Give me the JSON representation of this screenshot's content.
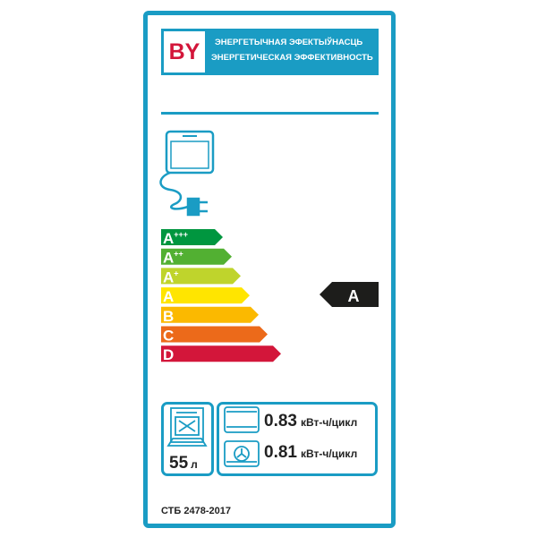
{
  "header": {
    "country_code": "BY",
    "line1": "ЭНЕРГЕТЫЧНАЯ  ЭФЕКТЫЎНАСЦЬ",
    "line2": "ЭНЕРГЕТИЧЕСКАЯ ЭФФЕКТИВНОСТЬ",
    "color": "#1a9cc4"
  },
  "scale": [
    {
      "letter": "A",
      "sup": "+++",
      "color": "#00963f"
    },
    {
      "letter": "A",
      "sup": "++",
      "color": "#52b032"
    },
    {
      "letter": "A",
      "sup": "+",
      "color": "#bfd42c"
    },
    {
      "letter": "A",
      "sup": "",
      "color": "#ffe500"
    },
    {
      "letter": "B",
      "sup": "",
      "color": "#fbb900"
    },
    {
      "letter": "C",
      "sup": "",
      "color": "#ec6a1a"
    },
    {
      "letter": "D",
      "sup": "",
      "color": "#d3163a"
    }
  ],
  "rating": {
    "class": "A",
    "index": 3
  },
  "volume": {
    "value": "55",
    "unit": "л"
  },
  "consumption": [
    {
      "mode": "conventional",
      "value": "0.83",
      "unit": "кВт-ч/цикл"
    },
    {
      "mode": "fan-forced",
      "value": "0.81",
      "unit": "кВт-ч/цикл"
    }
  ],
  "standard": "СТБ 2478-2017"
}
